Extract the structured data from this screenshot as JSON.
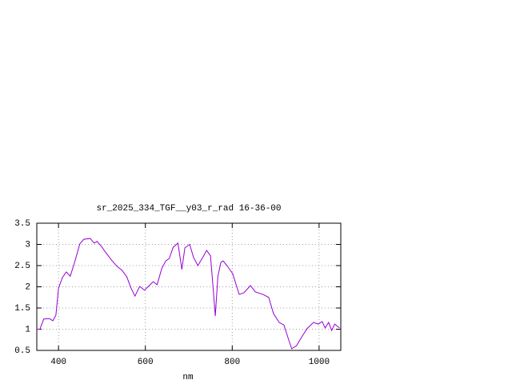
{
  "chart_data": {
    "type": "line",
    "title": "sr_2025_334_TGF__y03_r_rad 16-36-00",
    "x_label": "nm",
    "series": [
      {
        "color": "#9400d3",
        "x": [
          350,
          357,
          366,
          379,
          387,
          394,
          400,
          409,
          418,
          427,
          436,
          449,
          458,
          473,
          482,
          489,
          499,
          508,
          522,
          535,
          546,
          557,
          567,
          576,
          587,
          598,
          607,
          618,
          627,
          638,
          647,
          655,
          664,
          675,
          684,
          691,
          702,
          711,
          721,
          732,
          741,
          750,
          756,
          761,
          767,
          774,
          779,
          788,
          801,
          816,
          827,
          842,
          853,
          871,
          884,
          895,
          908,
          919,
          930,
          937,
          948,
          959,
          972,
          987,
          998,
          1007,
          1014,
          1022,
          1029,
          1036,
          1047
        ],
        "values": [
          1.0,
          1.0,
          1.24,
          1.25,
          1.2,
          1.33,
          1.97,
          2.22,
          2.35,
          2.25,
          2.54,
          3.01,
          3.12,
          3.14,
          3.03,
          3.07,
          2.95,
          2.82,
          2.63,
          2.48,
          2.39,
          2.24,
          1.97,
          1.78,
          2.01,
          1.92,
          2.01,
          2.12,
          2.05,
          2.44,
          2.61,
          2.67,
          2.93,
          3.03,
          2.41,
          2.92,
          3.0,
          2.69,
          2.5,
          2.69,
          2.86,
          2.73,
          1.97,
          1.31,
          2.25,
          2.58,
          2.61,
          2.5,
          2.31,
          1.82,
          1.86,
          2.03,
          1.88,
          1.82,
          1.75,
          1.37,
          1.16,
          1.1,
          0.75,
          0.54,
          0.61,
          0.8,
          1.01,
          1.16,
          1.12,
          1.18,
          1.03,
          1.16,
          0.97,
          1.12,
          1.03
        ]
      }
    ],
    "xlim": [
      350,
      1050
    ],
    "ylim": [
      0.5,
      3.5
    ],
    "xticks": [
      400,
      600,
      800,
      1000
    ],
    "yticks": [
      0.5,
      1,
      1.5,
      2,
      2.5,
      3,
      3.5
    ],
    "grid": true
  }
}
